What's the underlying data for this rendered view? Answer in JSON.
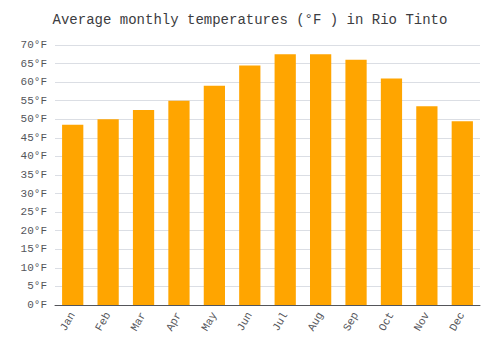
{
  "chart_data": {
    "type": "bar",
    "title": "Average monthly temperatures (°F ) in Rio Tinto",
    "categories": [
      "Jan",
      "Feb",
      "Mar",
      "Apr",
      "May",
      "Jun",
      "Jul",
      "Aug",
      "Sep",
      "Oct",
      "Nov",
      "Dec"
    ],
    "values": [
      48.5,
      50.0,
      52.5,
      55.0,
      59.0,
      64.5,
      67.5,
      67.5,
      66.0,
      61.0,
      53.5,
      49.5
    ],
    "color": "#FFA500",
    "ylim": [
      0,
      70
    ],
    "yticks": [
      {
        "value": 0,
        "label": "0°F"
      },
      {
        "value": 5,
        "label": "5°F"
      },
      {
        "value": 10,
        "label": "10°F"
      },
      {
        "value": 15,
        "label": "15°F"
      },
      {
        "value": 20,
        "label": "20°F"
      },
      {
        "value": 25,
        "label": "25°F"
      },
      {
        "value": 30,
        "label": "30°F"
      },
      {
        "value": 35,
        "label": "35°F"
      },
      {
        "value": 40,
        "label": "40°F"
      },
      {
        "value": 45,
        "label": "45°F"
      },
      {
        "value": 50,
        "label": "50°F"
      },
      {
        "value": 55,
        "label": "55°F"
      },
      {
        "value": 60,
        "label": "60°F"
      },
      {
        "value": 65,
        "label": "65°F"
      },
      {
        "value": 70,
        "label": "70°F"
      }
    ],
    "grid": true
  }
}
